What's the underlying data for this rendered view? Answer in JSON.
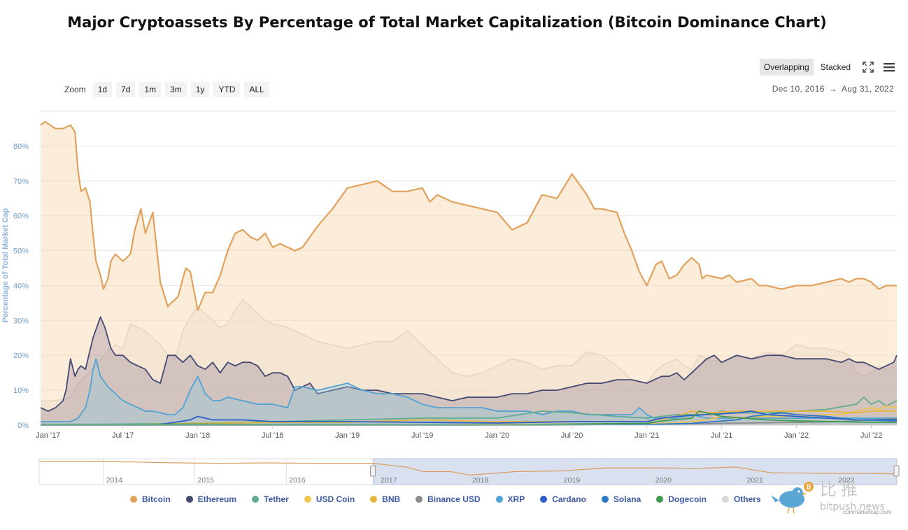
{
  "title": "Major Cryptoassets By Percentage of Total Market Capitalization (Bitcoin Dominance Chart)",
  "zoom": {
    "label": "Zoom",
    "buttons": [
      "1d",
      "7d",
      "1m",
      "3m",
      "1y",
      "YTD",
      "ALL"
    ]
  },
  "modes": {
    "overlapping": "Overlapping",
    "stacked": "Stacked"
  },
  "range": {
    "start": "Dec 10, 2016",
    "arrow": "→",
    "end": "Aug 31, 2022"
  },
  "watermark": {
    "cn": "比推",
    "en": "bitpush.news",
    "small": "coinmarketcap.com",
    "coin": "₿"
  },
  "chart_data": {
    "type": "area",
    "ylabel": "Percentage of Total Market Cap",
    "ylim": [
      0,
      90
    ],
    "yticks": [
      0,
      10,
      20,
      30,
      40,
      50,
      60,
      70,
      80
    ],
    "ytick_labels": [
      "0%",
      "10%",
      "20%",
      "30%",
      "40%",
      "50%",
      "60%",
      "70%",
      "80%"
    ],
    "xlim": [
      2016.95,
      2022.67
    ],
    "xticks": [
      2017.0,
      2017.5,
      2018.0,
      2018.5,
      2019.0,
      2019.5,
      2020.0,
      2020.5,
      2021.0,
      2021.5,
      2022.0,
      2022.5
    ],
    "xtick_labels": [
      "Jan '17",
      "Jul '17",
      "Jan '18",
      "Jul '18",
      "Jan '19",
      "Jul '19",
      "Jan '20",
      "Jul '20",
      "Jan '21",
      "Jul '21",
      "Jan '22",
      "Jul '22"
    ],
    "grid": true,
    "series": [
      {
        "name": "Others",
        "color": "#d9d9d9",
        "fill": "rgba(226,226,226,0.45)",
        "x": [
          2016.95,
          2017.05,
          2017.15,
          2017.2,
          2017.25,
          2017.3,
          2017.35,
          2017.4,
          2017.45,
          2017.5,
          2017.55,
          2017.6,
          2017.65,
          2017.7,
          2017.75,
          2017.8,
          2017.85,
          2017.9,
          2017.95,
          2018.0,
          2018.05,
          2018.1,
          2018.15,
          2018.2,
          2018.25,
          2018.3,
          2018.35,
          2018.4,
          2018.45,
          2018.5,
          2018.6,
          2018.7,
          2018.8,
          2018.9,
          2019.0,
          2019.1,
          2019.2,
          2019.3,
          2019.4,
          2019.5,
          2019.6,
          2019.7,
          2019.8,
          2019.9,
          2020.0,
          2020.1,
          2020.2,
          2020.3,
          2020.4,
          2020.5,
          2020.6,
          2020.7,
          2020.8,
          2020.9,
          2021.0,
          2021.05,
          2021.1,
          2021.2,
          2021.25,
          2021.3,
          2021.35,
          2021.4,
          2021.5,
          2021.6,
          2021.7,
          2021.8,
          2021.9,
          2022.0,
          2022.1,
          2022.2,
          2022.3,
          2022.35,
          2022.4,
          2022.45,
          2022.5,
          2022.55,
          2022.6,
          2022.67
        ],
        "values": [
          7,
          7,
          8,
          12,
          14,
          16,
          19,
          21,
          23,
          22,
          29,
          28,
          27,
          25,
          23,
          20,
          19,
          27,
          31,
          34,
          32,
          30,
          28,
          29,
          33,
          36,
          34,
          32,
          30,
          29,
          28,
          26,
          24,
          23,
          22,
          23,
          24,
          24,
          27,
          23,
          19,
          15,
          14,
          15,
          17,
          19,
          18,
          16,
          17,
          17,
          21,
          20,
          17,
          13,
          12,
          15,
          17,
          19,
          17,
          16,
          20,
          19,
          18,
          20,
          19,
          21,
          20,
          23,
          22,
          22,
          21,
          20,
          15,
          14,
          15,
          17,
          16,
          17
        ]
      },
      {
        "name": "Bitcoin",
        "color": "#e0a25c",
        "fill": "rgba(249,215,175,0.45)",
        "x": [
          2016.95,
          2016.98,
          2017.05,
          2017.1,
          2017.15,
          2017.18,
          2017.2,
          2017.22,
          2017.25,
          2017.28,
          2017.3,
          2017.32,
          2017.35,
          2017.37,
          2017.4,
          2017.42,
          2017.45,
          2017.5,
          2017.55,
          2017.58,
          2017.62,
          2017.65,
          2017.7,
          2017.75,
          2017.8,
          2017.82,
          2017.85,
          2017.87,
          2017.9,
          2017.92,
          2017.95,
          2018.0,
          2018.05,
          2018.1,
          2018.15,
          2018.2,
          2018.25,
          2018.3,
          2018.35,
          2018.4,
          2018.45,
          2018.5,
          2018.55,
          2018.6,
          2018.65,
          2018.7,
          2018.8,
          2018.9,
          2019.0,
          2019.1,
          2019.2,
          2019.3,
          2019.4,
          2019.5,
          2019.55,
          2019.6,
          2019.7,
          2019.8,
          2019.9,
          2020.0,
          2020.1,
          2020.2,
          2020.3,
          2020.4,
          2020.5,
          2020.6,
          2020.65,
          2020.7,
          2020.8,
          2020.85,
          2020.9,
          2020.95,
          2021.0,
          2021.03,
          2021.06,
          2021.1,
          2021.15,
          2021.2,
          2021.25,
          2021.3,
          2021.35,
          2021.37,
          2021.4,
          2021.5,
          2021.55,
          2021.6,
          2021.7,
          2021.75,
          2021.8,
          2021.9,
          2022.0,
          2022.1,
          2022.2,
          2022.3,
          2022.35,
          2022.4,
          2022.45,
          2022.5,
          2022.55,
          2022.6,
          2022.67
        ],
        "values": [
          86,
          87,
          85,
          85,
          86,
          84,
          73,
          67,
          68,
          64,
          55,
          47,
          43,
          39,
          42,
          47,
          49,
          47,
          49,
          56,
          62,
          55,
          61,
          41,
          34,
          35,
          36,
          37,
          42,
          45,
          44,
          33,
          38,
          38,
          43,
          50,
          55,
          56,
          54,
          53,
          55,
          51,
          52,
          51,
          50,
          51,
          57,
          62,
          68,
          69,
          70,
          67,
          67,
          68,
          64,
          66,
          64,
          63,
          62,
          61,
          56,
          58,
          66,
          65,
          72,
          66,
          62,
          62,
          61,
          55,
          50,
          44,
          40,
          43,
          46,
          47,
          42,
          43,
          46,
          48,
          46,
          42,
          43,
          42,
          43,
          41,
          42,
          40,
          40,
          39,
          40,
          40,
          41,
          42,
          41,
          42,
          42,
          41,
          39,
          40,
          40
        ]
      },
      {
        "name": "Ethereum",
        "color": "#444a72",
        "fill": "rgba(150,130,150,0.35)",
        "x": [
          2016.95,
          2017.0,
          2017.05,
          2017.1,
          2017.12,
          2017.15,
          2017.18,
          2017.2,
          2017.22,
          2017.25,
          2017.3,
          2017.35,
          2017.38,
          2017.42,
          2017.45,
          2017.5,
          2017.55,
          2017.6,
          2017.65,
          2017.7,
          2017.75,
          2017.8,
          2017.85,
          2017.9,
          2017.95,
          2018.0,
          2018.05,
          2018.1,
          2018.15,
          2018.2,
          2018.25,
          2018.3,
          2018.35,
          2018.4,
          2018.45,
          2018.5,
          2018.55,
          2018.6,
          2018.65,
          2018.7,
          2018.75,
          2018.8,
          2018.9,
          2019.0,
          2019.1,
          2019.2,
          2019.3,
          2019.4,
          2019.5,
          2019.6,
          2019.7,
          2019.8,
          2019.9,
          2020.0,
          2020.1,
          2020.2,
          2020.3,
          2020.4,
          2020.5,
          2020.6,
          2020.7,
          2020.8,
          2020.9,
          2021.0,
          2021.05,
          2021.1,
          2021.15,
          2021.2,
          2021.25,
          2021.3,
          2021.35,
          2021.4,
          2021.45,
          2021.5,
          2021.55,
          2021.6,
          2021.7,
          2021.8,
          2021.9,
          2022.0,
          2022.1,
          2022.2,
          2022.3,
          2022.35,
          2022.4,
          2022.45,
          2022.5,
          2022.55,
          2022.6,
          2022.65,
          2022.67
        ],
        "values": [
          5,
          4,
          5,
          7,
          10,
          19,
          14,
          16,
          17,
          16,
          25,
          31,
          28,
          22,
          20,
          20,
          18,
          17,
          16,
          13,
          12,
          20,
          20,
          18,
          20,
          17,
          16,
          18,
          15,
          18,
          17,
          18,
          18,
          17,
          14,
          15,
          15,
          14,
          10,
          11,
          12,
          9,
          10,
          11,
          10,
          10,
          9,
          9,
          9,
          8,
          7,
          8,
          8,
          8,
          9,
          9,
          10,
          10,
          11,
          12,
          12,
          13,
          13,
          12,
          13,
          14,
          14,
          15,
          13,
          15,
          17,
          19,
          20,
          18,
          19,
          20,
          19,
          20,
          20,
          19,
          19,
          19,
          18,
          19,
          18,
          18,
          17,
          16,
          17,
          18,
          20
        ]
      },
      {
        "name": "XRP",
        "color": "#4fa3d4",
        "fill": "rgba(140,200,225,0.35)",
        "x": [
          2016.95,
          2017.0,
          2017.05,
          2017.1,
          2017.15,
          2017.2,
          2017.25,
          2017.28,
          2017.3,
          2017.32,
          2017.35,
          2017.4,
          2017.45,
          2017.5,
          2017.55,
          2017.6,
          2017.65,
          2017.7,
          2017.8,
          2017.85,
          2017.9,
          2017.95,
          2018.0,
          2018.05,
          2018.1,
          2018.15,
          2018.2,
          2018.3,
          2018.4,
          2018.5,
          2018.6,
          2018.65,
          2018.7,
          2018.8,
          2018.9,
          2019.0,
          2019.1,
          2019.2,
          2019.3,
          2019.4,
          2019.5,
          2019.6,
          2019.7,
          2019.8,
          2019.9,
          2020.0,
          2020.1,
          2020.2,
          2020.3,
          2020.4,
          2020.5,
          2020.6,
          2020.7,
          2020.8,
          2020.9,
          2020.95,
          2021.0,
          2021.05,
          2021.1,
          2021.2,
          2021.3,
          2021.4,
          2021.5,
          2021.6,
          2021.7,
          2021.8,
          2021.9,
          2022.0,
          2022.1,
          2022.2,
          2022.3,
          2022.4,
          2022.5,
          2022.6,
          2022.67
        ],
        "values": [
          1,
          1,
          1,
          1,
          1,
          2,
          5,
          10,
          16,
          19,
          14,
          11,
          9,
          7,
          6,
          5,
          4,
          4,
          3,
          3,
          5,
          10,
          14,
          9,
          7,
          7,
          8,
          7,
          6,
          6,
          5,
          11,
          11,
          10,
          11,
          12,
          10,
          9,
          9,
          8,
          6,
          5,
          5,
          5,
          5,
          4,
          4,
          4,
          3,
          4,
          4,
          3,
          3,
          3,
          3,
          5,
          3,
          2,
          2,
          2,
          3,
          2,
          2,
          2,
          2,
          2,
          2,
          2,
          2,
          2,
          2,
          2,
          2,
          2,
          2
        ]
      },
      {
        "name": "Tether",
        "color": "#5fad8e",
        "x": [
          2016.95,
          2017.5,
          2018.0,
          2018.5,
          2019.0,
          2019.5,
          2020.0,
          2020.3,
          2020.5,
          2020.8,
          2021.0,
          2021.2,
          2021.4,
          2021.5,
          2021.6,
          2021.8,
          2022.0,
          2022.2,
          2022.4,
          2022.45,
          2022.5,
          2022.55,
          2022.6,
          2022.67
        ],
        "values": [
          0.1,
          0.3,
          0.5,
          1,
          1.5,
          2,
          2,
          4,
          3.5,
          2.5,
          2,
          3,
          3,
          4,
          3.5,
          3.5,
          4,
          4.5,
          6,
          8,
          6,
          7,
          5.5,
          7
        ]
      },
      {
        "name": "USD Coin",
        "color": "#f0c44c",
        "x": [
          2016.95,
          2018.8,
          2019.5,
          2020.0,
          2020.5,
          2020.8,
          2021.0,
          2021.2,
          2021.4,
          2021.5,
          2021.6,
          2021.8,
          2022.0,
          2022.2,
          2022.3,
          2022.4,
          2022.5,
          2022.55,
          2022.6,
          2022.67
        ],
        "values": [
          0,
          0,
          0.1,
          0.2,
          0.3,
          0.4,
          0.4,
          0.6,
          1.5,
          2.5,
          2,
          2.5,
          2.5,
          3,
          3,
          4,
          5,
          4.5,
          5.5,
          5
        ]
      },
      {
        "name": "BNB",
        "color": "#e8b63a",
        "x": [
          2016.95,
          2017.6,
          2018.0,
          2018.5,
          2019.0,
          2019.5,
          2020.0,
          2020.5,
          2021.0,
          2021.2,
          2021.3,
          2021.4,
          2021.6,
          2021.8,
          2022.0,
          2022.2,
          2022.4,
          2022.5,
          2022.6,
          2022.67
        ],
        "values": [
          0,
          0.2,
          0.5,
          0.8,
          0.8,
          1.5,
          1,
          1,
          1,
          2.5,
          4,
          3.5,
          4,
          4,
          4,
          4,
          3.5,
          4,
          4,
          4
        ]
      },
      {
        "name": "Binance USD",
        "color": "#8c8c8c",
        "x": [
          2016.95,
          2019.8,
          2020.0,
          2020.5,
          2021.0,
          2021.5,
          2022.0,
          2022.3,
          2022.5,
          2022.67
        ],
        "values": [
          0,
          0,
          0.1,
          0.1,
          0.2,
          0.5,
          0.8,
          1,
          1.5,
          1.8
        ]
      },
      {
        "name": "Cardano",
        "color": "#2c5fc8",
        "x": [
          2016.95,
          2017.7,
          2017.8,
          2017.95,
          2018.0,
          2018.1,
          2018.3,
          2018.5,
          2019.0,
          2019.5,
          2020.0,
          2020.5,
          2020.8,
          2021.0,
          2021.1,
          2021.2,
          2021.4,
          2021.6,
          2021.7,
          2021.8,
          2022.0,
          2022.2,
          2022.4,
          2022.5,
          2022.67
        ],
        "values": [
          0,
          0,
          0.5,
          1.5,
          2.5,
          1.5,
          1.5,
          1,
          1,
          0.8,
          0.6,
          1,
          1,
          1,
          2,
          2.5,
          3,
          3.5,
          4,
          3,
          2.5,
          2,
          1.5,
          1.5,
          1.5
        ]
      },
      {
        "name": "Solana",
        "color": "#2b78c4",
        "x": [
          2016.95,
          2020.3,
          2020.8,
          2021.0,
          2021.3,
          2021.6,
          2021.7,
          2021.9,
          2022.0,
          2022.2,
          2022.4,
          2022.67
        ],
        "values": [
          0,
          0,
          0.1,
          0.2,
          0.5,
          1.5,
          2.5,
          3.5,
          3,
          2.5,
          1.5,
          1.2
        ]
      },
      {
        "name": "Dogecoin",
        "color": "#3e9b4f",
        "x": [
          2016.95,
          2017.5,
          2018.0,
          2018.5,
          2019.0,
          2020.0,
          2021.0,
          2021.1,
          2021.3,
          2021.35,
          2021.4,
          2021.5,
          2021.8,
          2022.0,
          2022.5,
          2022.67
        ],
        "values": [
          0.2,
          0.2,
          0.3,
          0.2,
          0.2,
          0.1,
          0.5,
          1.2,
          2,
          4,
          3.5,
          2.5,
          1.5,
          1.2,
          0.8,
          0.8
        ]
      }
    ],
    "legend_order": [
      "Bitcoin",
      "Ethereum",
      "Tether",
      "USD Coin",
      "BNB",
      "Binance USD",
      "XRP",
      "Cardano",
      "Solana",
      "Dogecoin",
      "Others"
    ],
    "legend_colors": [
      "#e0a25c",
      "#444a72",
      "#5fad8e",
      "#f0c44c",
      "#e8b63a",
      "#8c8c8c",
      "#4fa3d4",
      "#2c5fc8",
      "#2b78c4",
      "#3e9b4f",
      "#d9d9d9"
    ],
    "navigator": {
      "xlim": [
        2013.3,
        2022.67
      ],
      "xtick_labels": [
        "2014",
        "2015",
        "2016",
        "2017",
        "2018",
        "2019",
        "2020",
        "2021",
        "2022"
      ],
      "xticks": [
        2014,
        2015,
        2016,
        2017,
        2018,
        2019,
        2020,
        2021,
        2022
      ],
      "selected": [
        2016.95,
        2022.67
      ],
      "series_name": "Bitcoin",
      "x": [
        2013.3,
        2013.8,
        2014.3,
        2014.8,
        2015.3,
        2015.8,
        2016.3,
        2016.8,
        2016.95,
        2017.3,
        2017.5,
        2017.8,
        2018.0,
        2018.5,
        2019.0,
        2019.5,
        2020.0,
        2020.5,
        2020.9,
        2021.3,
        2021.6,
        2022.0,
        2022.4,
        2022.67
      ],
      "values": [
        94,
        94,
        92,
        88,
        86,
        88,
        86,
        86,
        86,
        70,
        50,
        50,
        35,
        50,
        53,
        66,
        66,
        64,
        70,
        45,
        44,
        42,
        42,
        40
      ]
    }
  }
}
